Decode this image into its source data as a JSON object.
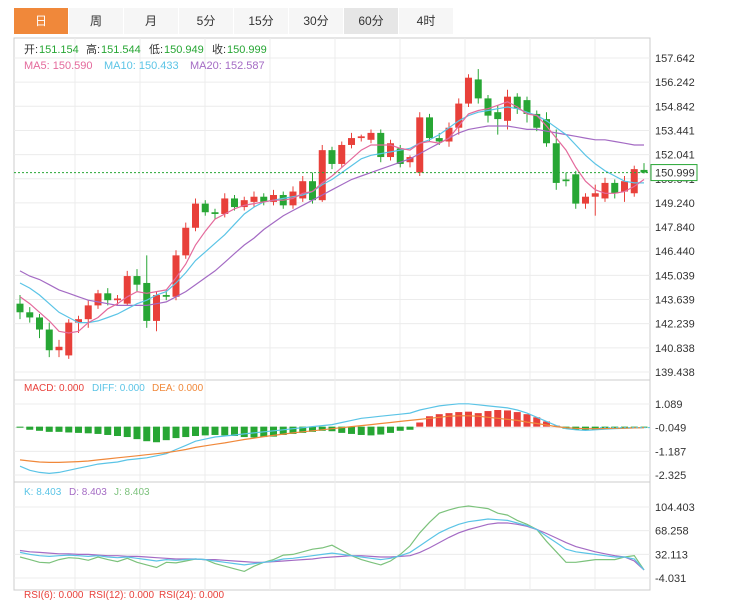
{
  "tabs": [
    {
      "label": "日",
      "state": "active"
    },
    {
      "label": "周",
      "state": ""
    },
    {
      "label": "月",
      "state": ""
    },
    {
      "label": "5分",
      "state": ""
    },
    {
      "label": "15分",
      "state": ""
    },
    {
      "label": "30分",
      "state": ""
    },
    {
      "label": "60分",
      "state": "selected"
    },
    {
      "label": "4时",
      "state": ""
    }
  ],
  "info": {
    "open_label": "开:",
    "open": "151.154",
    "high_label": "高:",
    "high": "151.544",
    "low_label": "低:",
    "low": "150.949",
    "close_label": "收:",
    "close": "150.999",
    "ma5_label": "MA5: 150.590",
    "ma10_label": "MA10: 150.433",
    "ma20_label": "MA20: 152.587"
  },
  "macd_legend": {
    "macd": "MACD: 0.000",
    "diff": "DIFF: 0.000",
    "dea": "DEA: 0.000"
  },
  "kdj_legend": {
    "k": "K: 8.403",
    "d": "D: 8.403",
    "j": "J: 8.403"
  },
  "rsi_legend": {
    "r6": "RSI(6): 0.000",
    "r12": "RSI(12): 0.000",
    "r24": "RSI(24): 0.000"
  },
  "colors": {
    "up": "#e8403a",
    "down": "#27a634",
    "ma5": "#e46a9c",
    "ma10": "#5bc4e6",
    "ma20": "#a46bc4",
    "diff": "#5bc4e6",
    "dea": "#f0883a",
    "k": "#5bc4e6",
    "d": "#a46bc4",
    "j": "#7cc27c",
    "grid": "#ececec",
    "border": "#cccccc",
    "price_line": "#27a634"
  },
  "chart_data": [
    {
      "type": "candlestick",
      "title": "",
      "y_ticks": [
        "157.642",
        "156.242",
        "154.842",
        "153.441",
        "152.041",
        "150.641",
        "149.240",
        "147.840",
        "146.440",
        "145.039",
        "143.639",
        "142.239",
        "140.838",
        "139.438"
      ],
      "ylim": [
        139.438,
        157.642
      ],
      "last_price": "150.999",
      "candles": [
        {
          "o": 143.4,
          "h": 143.9,
          "l": 142.5,
          "c": 142.9
        },
        {
          "o": 142.9,
          "h": 143.2,
          "l": 142.3,
          "c": 142.6
        },
        {
          "o": 142.6,
          "h": 142.8,
          "l": 141.4,
          "c": 141.9
        },
        {
          "o": 141.9,
          "h": 142.3,
          "l": 140.3,
          "c": 140.7
        },
        {
          "o": 140.7,
          "h": 141.3,
          "l": 140.3,
          "c": 140.9
        },
        {
          "o": 140.4,
          "h": 142.5,
          "l": 140.2,
          "c": 142.3
        },
        {
          "o": 142.3,
          "h": 142.7,
          "l": 141.7,
          "c": 142.5
        },
        {
          "o": 142.5,
          "h": 143.6,
          "l": 142.0,
          "c": 143.3
        },
        {
          "o": 143.3,
          "h": 144.2,
          "l": 143.1,
          "c": 144.0
        },
        {
          "o": 144.0,
          "h": 144.3,
          "l": 143.3,
          "c": 143.6
        },
        {
          "o": 143.6,
          "h": 143.9,
          "l": 143.3,
          "c": 143.7
        },
        {
          "o": 143.4,
          "h": 145.3,
          "l": 143.3,
          "c": 145.0
        },
        {
          "o": 145.0,
          "h": 145.4,
          "l": 144.1,
          "c": 144.5
        },
        {
          "o": 144.6,
          "h": 146.2,
          "l": 142.0,
          "c": 142.4
        },
        {
          "o": 142.4,
          "h": 144.1,
          "l": 141.8,
          "c": 143.9
        },
        {
          "o": 143.9,
          "h": 144.2,
          "l": 143.6,
          "c": 143.8
        },
        {
          "o": 143.8,
          "h": 146.5,
          "l": 143.6,
          "c": 146.2
        },
        {
          "o": 146.2,
          "h": 148.1,
          "l": 146.0,
          "c": 147.8
        },
        {
          "o": 147.8,
          "h": 149.5,
          "l": 147.6,
          "c": 149.2
        },
        {
          "o": 149.2,
          "h": 149.4,
          "l": 148.5,
          "c": 148.7
        },
        {
          "o": 148.7,
          "h": 148.9,
          "l": 148.3,
          "c": 148.6
        },
        {
          "o": 148.6,
          "h": 149.8,
          "l": 148.4,
          "c": 149.5
        },
        {
          "o": 149.5,
          "h": 149.7,
          "l": 148.8,
          "c": 149.0
        },
        {
          "o": 149.0,
          "h": 149.6,
          "l": 148.8,
          "c": 149.4
        },
        {
          "o": 149.3,
          "h": 149.9,
          "l": 149.0,
          "c": 149.6
        },
        {
          "o": 149.6,
          "h": 149.8,
          "l": 149.1,
          "c": 149.3
        },
        {
          "o": 149.3,
          "h": 150.0,
          "l": 149.1,
          "c": 149.7
        },
        {
          "o": 149.7,
          "h": 149.9,
          "l": 148.9,
          "c": 149.1
        },
        {
          "o": 149.1,
          "h": 150.2,
          "l": 148.9,
          "c": 149.9
        },
        {
          "o": 149.5,
          "h": 150.8,
          "l": 149.3,
          "c": 150.5
        },
        {
          "o": 150.5,
          "h": 151.0,
          "l": 149.2,
          "c": 149.4
        },
        {
          "o": 149.4,
          "h": 152.6,
          "l": 149.3,
          "c": 152.3
        },
        {
          "o": 152.3,
          "h": 152.5,
          "l": 151.2,
          "c": 151.5
        },
        {
          "o": 151.5,
          "h": 152.8,
          "l": 151.3,
          "c": 152.6
        },
        {
          "o": 152.6,
          "h": 153.3,
          "l": 152.4,
          "c": 153.0
        },
        {
          "o": 153.0,
          "h": 153.2,
          "l": 152.8,
          "c": 153.1
        },
        {
          "o": 152.9,
          "h": 153.5,
          "l": 152.7,
          "c": 153.3
        },
        {
          "o": 153.3,
          "h": 153.5,
          "l": 151.6,
          "c": 151.9
        },
        {
          "o": 151.9,
          "h": 152.9,
          "l": 151.7,
          "c": 152.7
        },
        {
          "o": 152.4,
          "h": 152.6,
          "l": 151.3,
          "c": 151.5
        },
        {
          "o": 151.6,
          "h": 152.0,
          "l": 151.3,
          "c": 151.9
        },
        {
          "o": 151.0,
          "h": 154.5,
          "l": 150.8,
          "c": 154.2
        },
        {
          "o": 154.2,
          "h": 154.4,
          "l": 152.8,
          "c": 153.0
        },
        {
          "o": 153.0,
          "h": 153.3,
          "l": 152.6,
          "c": 152.8
        },
        {
          "o": 152.8,
          "h": 153.9,
          "l": 152.5,
          "c": 153.6
        },
        {
          "o": 153.6,
          "h": 155.3,
          "l": 153.2,
          "c": 155.0
        },
        {
          "o": 155.0,
          "h": 156.7,
          "l": 154.8,
          "c": 156.5
        },
        {
          "o": 156.4,
          "h": 157.0,
          "l": 155.0,
          "c": 155.3
        },
        {
          "o": 155.3,
          "h": 155.5,
          "l": 153.9,
          "c": 154.3
        },
        {
          "o": 154.5,
          "h": 154.9,
          "l": 153.2,
          "c": 154.1
        },
        {
          "o": 154.0,
          "h": 155.8,
          "l": 153.5,
          "c": 155.4
        },
        {
          "o": 155.4,
          "h": 155.6,
          "l": 154.4,
          "c": 154.7
        },
        {
          "o": 155.2,
          "h": 155.4,
          "l": 153.9,
          "c": 154.4
        },
        {
          "o": 154.4,
          "h": 154.6,
          "l": 153.4,
          "c": 153.6
        },
        {
          "o": 154.1,
          "h": 154.5,
          "l": 152.5,
          "c": 152.7
        },
        {
          "o": 152.7,
          "h": 153.5,
          "l": 150.0,
          "c": 150.4
        },
        {
          "o": 150.6,
          "h": 151.0,
          "l": 150.2,
          "c": 150.5
        },
        {
          "o": 150.9,
          "h": 151.1,
          "l": 148.9,
          "c": 149.2
        },
        {
          "o": 149.2,
          "h": 149.8,
          "l": 148.9,
          "c": 149.6
        },
        {
          "o": 149.6,
          "h": 150.3,
          "l": 148.5,
          "c": 149.8
        },
        {
          "o": 149.5,
          "h": 150.7,
          "l": 149.3,
          "c": 150.4
        },
        {
          "o": 150.4,
          "h": 150.6,
          "l": 149.5,
          "c": 149.8
        },
        {
          "o": 149.9,
          "h": 150.8,
          "l": 149.3,
          "c": 150.5
        },
        {
          "o": 149.8,
          "h": 151.4,
          "l": 149.6,
          "c": 151.2
        },
        {
          "o": 151.154,
          "h": 151.544,
          "l": 150.949,
          "c": 150.999
        }
      ],
      "ma5": [
        143.8,
        143.4,
        142.9,
        142.4,
        141.8,
        141.7,
        141.8,
        142.3,
        142.6,
        143.1,
        143.4,
        143.8,
        144.1,
        144.0,
        144.1,
        144.2,
        144.9,
        145.7,
        146.8,
        147.6,
        148.3,
        148.6,
        148.9,
        149.1,
        149.2,
        149.3,
        149.4,
        149.4,
        149.5,
        149.8,
        149.9,
        150.4,
        150.8,
        151.3,
        151.8,
        152.3,
        152.6,
        152.6,
        152.6,
        152.4,
        152.3,
        152.7,
        152.8,
        152.7,
        153.0,
        153.7,
        154.4,
        154.6,
        154.7,
        154.9,
        155.1,
        154.8,
        154.4,
        154.3,
        153.7,
        153.0,
        152.3,
        151.3,
        150.5,
        150.0,
        149.8,
        149.8,
        149.9,
        150.2,
        150.6
      ],
      "ma10": [
        144.6,
        144.3,
        143.9,
        143.4,
        142.9,
        142.6,
        142.3,
        142.3,
        142.4,
        142.6,
        142.8,
        143.1,
        143.4,
        143.6,
        143.9,
        144.1,
        144.6,
        145.2,
        145.9,
        146.4,
        146.9,
        147.4,
        148.0,
        148.6,
        149.0,
        149.3,
        149.4,
        149.5,
        149.6,
        149.7,
        149.9,
        150.3,
        150.6,
        151.0,
        151.4,
        151.8,
        152.0,
        152.1,
        152.2,
        152.3,
        152.4,
        152.7,
        152.9,
        153.2,
        153.6,
        154.0,
        154.3,
        154.5,
        154.6,
        154.7,
        154.8,
        154.7,
        154.5,
        154.3,
        154.0,
        153.6,
        153.2,
        152.6,
        152.0,
        151.5,
        151.1,
        150.8,
        150.5,
        150.4,
        150.4
      ],
      "ma20": [
        145.3,
        145.0,
        144.8,
        144.5,
        144.2,
        144.0,
        143.8,
        143.6,
        143.5,
        143.4,
        143.3,
        143.3,
        143.3,
        143.3,
        143.4,
        143.5,
        143.8,
        144.1,
        144.5,
        144.9,
        145.3,
        145.8,
        146.3,
        146.8,
        147.2,
        147.7,
        148.1,
        148.5,
        148.8,
        149.1,
        149.4,
        149.7,
        150.0,
        150.3,
        150.6,
        150.8,
        151.0,
        151.2,
        151.4,
        151.6,
        151.8,
        152.1,
        152.4,
        152.7,
        153.0,
        153.3,
        153.5,
        153.6,
        153.7,
        153.7,
        153.7,
        153.6,
        153.5,
        153.5,
        153.4,
        153.3,
        153.2,
        153.1,
        153.0,
        152.9,
        152.9,
        152.8,
        152.7,
        152.6,
        152.6
      ]
    },
    {
      "type": "bar",
      "title": "MACD",
      "y_ticks": [
        "1.089",
        "-0.049",
        "-1.187",
        "-2.325"
      ],
      "ylim": [
        -2.325,
        1.089
      ],
      "histogram": [
        -0.05,
        -0.15,
        -0.2,
        -0.25,
        -0.25,
        -0.28,
        -0.3,
        -0.32,
        -0.35,
        -0.4,
        -0.45,
        -0.5,
        -0.6,
        -0.7,
        -0.75,
        -0.65,
        -0.55,
        -0.5,
        -0.45,
        -0.42,
        -0.4,
        -0.42,
        -0.45,
        -0.5,
        -0.52,
        -0.5,
        -0.48,
        -0.4,
        -0.35,
        -0.3,
        -0.25,
        -0.2,
        -0.22,
        -0.3,
        -0.35,
        -0.4,
        -0.42,
        -0.38,
        -0.3,
        -0.2,
        -0.15,
        0.2,
        0.5,
        0.6,
        0.65,
        0.7,
        0.72,
        0.65,
        0.75,
        0.8,
        0.78,
        0.7,
        0.6,
        0.45,
        0.25,
        0.05,
        -0.1,
        -0.15,
        -0.18,
        -0.15,
        -0.12,
        -0.1,
        -0.08,
        -0.06,
        -0.05
      ],
      "diff": [
        -1.9,
        -2.1,
        -2.2,
        -2.25,
        -2.2,
        -2.1,
        -2.0,
        -1.9,
        -1.8,
        -1.75,
        -1.7,
        -1.6,
        -1.55,
        -1.5,
        -1.4,
        -1.3,
        -1.1,
        -0.9,
        -0.7,
        -0.6,
        -0.5,
        -0.45,
        -0.4,
        -0.35,
        -0.3,
        -0.25,
        -0.2,
        -0.15,
        -0.1,
        -0.05,
        0.0,
        0.05,
        0.1,
        0.2,
        0.3,
        0.4,
        0.45,
        0.5,
        0.55,
        0.6,
        0.65,
        0.8,
        0.9,
        1.0,
        1.05,
        1.1,
        1.1,
        1.05,
        1.0,
        0.95,
        0.9,
        0.8,
        0.65,
        0.45,
        0.25,
        0.05,
        -0.1,
        -0.15,
        -0.18,
        -0.15,
        -0.12,
        -0.1,
        -0.08,
        -0.06,
        -0.05
      ],
      "dea": [
        -1.6,
        -1.65,
        -1.7,
        -1.72,
        -1.72,
        -1.7,
        -1.68,
        -1.65,
        -1.6,
        -1.55,
        -1.5,
        -1.45,
        -1.4,
        -1.35,
        -1.3,
        -1.25,
        -1.18,
        -1.1,
        -1.0,
        -0.92,
        -0.85,
        -0.78,
        -0.7,
        -0.62,
        -0.55,
        -0.48,
        -0.42,
        -0.36,
        -0.3,
        -0.25,
        -0.2,
        -0.15,
        -0.1,
        -0.05,
        0.0,
        0.05,
        0.1,
        0.15,
        0.2,
        0.25,
        0.3,
        0.35,
        0.4,
        0.45,
        0.5,
        0.52,
        0.52,
        0.5,
        0.45,
        0.4,
        0.35,
        0.3,
        0.22,
        0.15,
        0.08,
        0.0,
        -0.05,
        -0.08,
        -0.1,
        -0.1,
        -0.09,
        -0.08,
        -0.07,
        -0.06,
        -0.05
      ]
    },
    {
      "type": "line",
      "title": "KDJ",
      "y_ticks": [
        "104.403",
        "68.258",
        "32.113",
        "-4.031"
      ],
      "ylim": [
        -4.031,
        104.403
      ],
      "k": [
        35,
        32,
        30,
        29,
        30,
        31,
        30,
        29,
        30,
        28,
        27,
        28,
        26,
        24,
        22,
        24,
        23,
        24,
        25,
        24,
        22,
        20,
        18,
        16,
        18,
        20,
        22,
        25,
        26,
        28,
        30,
        32,
        34,
        32,
        30,
        28,
        26,
        24,
        26,
        30,
        35,
        45,
        55,
        65,
        72,
        78,
        82,
        84,
        86,
        85,
        84,
        80,
        76,
        70,
        60,
        50,
        40,
        36,
        34,
        32,
        30,
        28,
        28,
        25,
        8.403
      ],
      "d": [
        38,
        36,
        35,
        34,
        33,
        33,
        32,
        32,
        31,
        30,
        30,
        29,
        29,
        28,
        27,
        26,
        25,
        25,
        25,
        24,
        24,
        23,
        22,
        21,
        20,
        20,
        21,
        22,
        23,
        24,
        25,
        27,
        28,
        29,
        30,
        30,
        29,
        28,
        28,
        29,
        30,
        35,
        42,
        50,
        58,
        65,
        70,
        74,
        78,
        80,
        80,
        78,
        75,
        70,
        64,
        57,
        50,
        44,
        40,
        36,
        33,
        30,
        28,
        22,
        8.403
      ],
      "j": [
        28,
        24,
        20,
        19,
        24,
        27,
        26,
        23,
        28,
        24,
        21,
        26,
        20,
        16,
        12,
        20,
        19,
        22,
        25,
        24,
        18,
        14,
        10,
        6,
        14,
        20,
        24,
        31,
        32,
        36,
        40,
        42,
        46,
        38,
        30,
        24,
        20,
        16,
        22,
        32,
        45,
        65,
        81,
        95,
        100,
        104,
        106,
        104,
        102,
        95,
        92,
        84,
        78,
        70,
        52,
        36,
        20,
        20,
        22,
        24,
        24,
        24,
        28,
        30,
        8.403
      ]
    }
  ]
}
